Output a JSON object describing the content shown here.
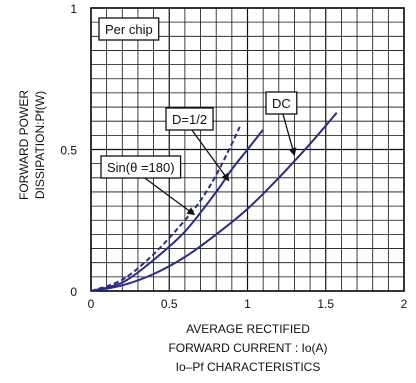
{
  "chart_data": {
    "type": "line",
    "title": "",
    "caption": "Io–Pf CHARACTERISTICS",
    "xlabel_line1": "AVERAGE RECTIFIED",
    "xlabel_line2": "FORWARD CURRENT : Io(A)",
    "ylabel_line1": "FORWARD POWER",
    "ylabel_line2": "DISSIPATION:Pf(W)",
    "xlim": [
      0,
      2
    ],
    "ylim": [
      0,
      1
    ],
    "x_ticks": [
      0,
      0.5,
      1,
      1.5,
      2
    ],
    "x_tick_labels": [
      "0",
      "0.5",
      "1",
      "1.5",
      "2"
    ],
    "y_ticks": [
      0,
      0.5,
      1
    ],
    "y_tick_labels": [
      "0",
      "0.5",
      "1"
    ],
    "grid": true,
    "grid_minor_x": 0.1,
    "grid_minor_y": 0.05,
    "legend_box": "Per chip",
    "line_color": "#2b2b8c",
    "series": [
      {
        "name": "DC",
        "style": "solid",
        "x": [
          0,
          0.2,
          0.4,
          0.6,
          0.8,
          1.0,
          1.2,
          1.4,
          1.57
        ],
        "y": [
          0,
          0.02,
          0.06,
          0.12,
          0.2,
          0.29,
          0.4,
          0.52,
          0.63
        ]
      },
      {
        "name": "D=1/2",
        "style": "solid",
        "x": [
          0,
          0.2,
          0.4,
          0.6,
          0.8,
          0.9,
          1.0,
          1.1
        ],
        "y": [
          0,
          0.03,
          0.11,
          0.21,
          0.35,
          0.43,
          0.5,
          0.57
        ]
      },
      {
        "name": "Sin(θ =180)",
        "style": "dashed",
        "x": [
          0,
          0.2,
          0.4,
          0.6,
          0.7,
          0.8,
          0.9,
          0.95
        ],
        "y": [
          0,
          0.04,
          0.13,
          0.25,
          0.32,
          0.41,
          0.52,
          0.58
        ]
      }
    ],
    "annotations": [
      {
        "text": "DC",
        "target_series": "DC",
        "target_x": 1.3,
        "target_y": 0.48
      },
      {
        "text": "D=1/2",
        "target_series": "D=1/2",
        "target_x": 0.88,
        "target_y": 0.39
      },
      {
        "text": "Sin(θ =180)",
        "target_series": "Sin(θ =180)",
        "target_x": 0.66,
        "target_y": 0.27
      }
    ]
  }
}
